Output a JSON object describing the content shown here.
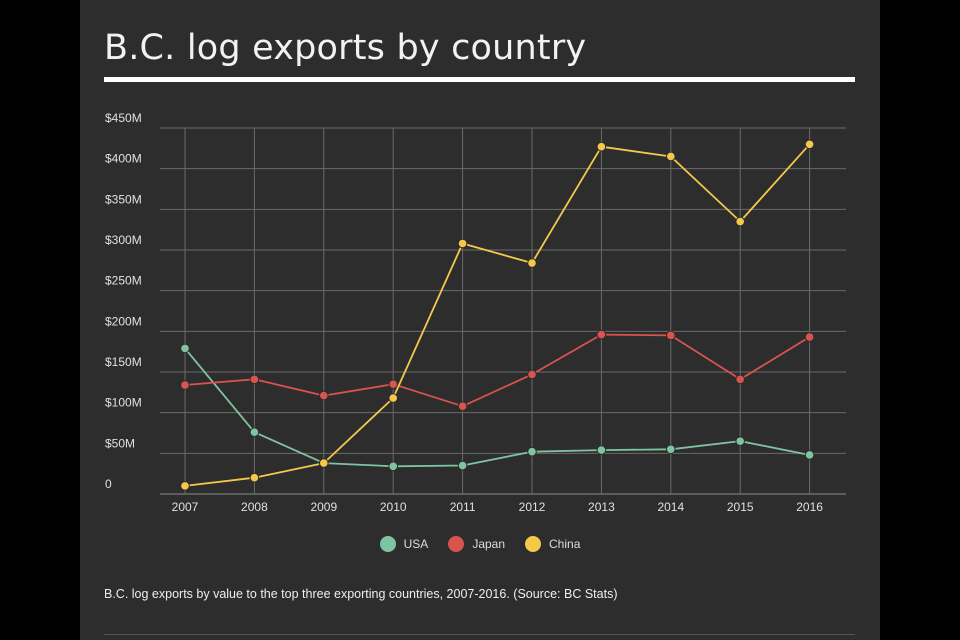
{
  "title": "B.C. log exports by country",
  "caption": "B.C. log exports by value to the top three exporting countries, 2007-2016. (Source: BC Stats)",
  "colors": {
    "background": "#2d2d2d",
    "grid": "#6a6a6a",
    "text": "#e0e0e0"
  },
  "chart_data": {
    "type": "line",
    "title": "B.C. log exports by country",
    "x": [
      "2007",
      "2008",
      "2009",
      "2010",
      "2011",
      "2012",
      "2013",
      "2014",
      "2015",
      "2016"
    ],
    "y_ticks": [
      "0",
      "$50M",
      "$100M",
      "$150M",
      "$200M",
      "$250M",
      "$300M",
      "$350M",
      "$400M",
      "$450M"
    ],
    "y_tick_values": [
      0,
      50,
      100,
      150,
      200,
      250,
      300,
      350,
      400,
      450
    ],
    "ylim": [
      0,
      450
    ],
    "ylabel_unit": "$M",
    "grid": true,
    "legend_position": "bottom-center",
    "series": [
      {
        "name": "USA",
        "color": "#7fc4a0",
        "values": [
          179,
          76,
          38,
          34,
          35,
          52,
          54,
          55,
          65,
          48
        ]
      },
      {
        "name": "Japan",
        "color": "#d9534f",
        "values": [
          134,
          141,
          121,
          135,
          108,
          147,
          196,
          195,
          141,
          193
        ]
      },
      {
        "name": "China",
        "color": "#f5c84c",
        "values": [
          10,
          20,
          38,
          118,
          308,
          284,
          427,
          415,
          335,
          430
        ]
      }
    ]
  }
}
